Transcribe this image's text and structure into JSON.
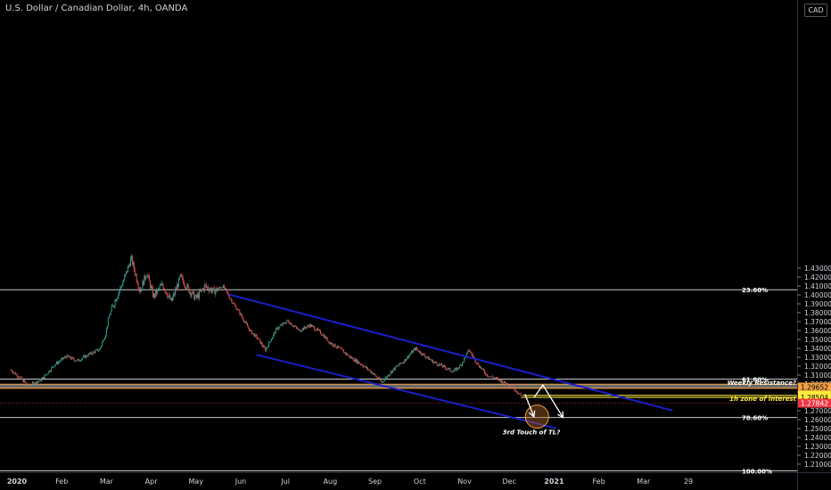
{
  "header": {
    "title": "U.S. Dollar / Canadian Dollar, 4h, OANDA",
    "currency": "CAD"
  },
  "chart_data": {
    "type": "candlestick",
    "symbol": "USDCAD",
    "timeframe": "4h",
    "broker": "OANDA",
    "ylim": [
      1.2025,
      1.44
    ],
    "y_ticks": [
      1.43,
      1.42,
      1.41,
      1.4,
      1.39,
      1.38,
      1.37,
      1.36,
      1.35,
      1.34,
      1.33,
      1.32,
      1.31,
      1.3,
      1.27,
      1.26,
      1.25,
      1.24,
      1.23,
      1.22,
      1.21
    ],
    "x_ticks": [
      {
        "label": "2020",
        "t": 0
      },
      {
        "label": "Feb",
        "t": 1
      },
      {
        "label": "Mar",
        "t": 2
      },
      {
        "label": "Apr",
        "t": 3
      },
      {
        "label": "May",
        "t": 4
      },
      {
        "label": "Jun",
        "t": 5
      },
      {
        "label": "Jul",
        "t": 6
      },
      {
        "label": "Aug",
        "t": 7
      },
      {
        "label": "Sep",
        "t": 8
      },
      {
        "label": "Oct",
        "t": 9
      },
      {
        "label": "Nov",
        "t": 10
      },
      {
        "label": "Dec",
        "t": 11
      },
      {
        "label": "2021",
        "t": 12
      },
      {
        "label": "Feb",
        "t": 13
      },
      {
        "label": "Mar",
        "t": 14
      },
      {
        "label": "29",
        "t": 15
      }
    ],
    "price_path": [
      [
        -0.15,
        1.316
      ],
      [
        0.05,
        1.308
      ],
      [
        0.25,
        1.298
      ],
      [
        0.55,
        1.305
      ],
      [
        0.85,
        1.322
      ],
      [
        1.1,
        1.331
      ],
      [
        1.35,
        1.326
      ],
      [
        1.6,
        1.333
      ],
      [
        1.85,
        1.339
      ],
      [
        1.98,
        1.356
      ],
      [
        2.05,
        1.375
      ],
      [
        2.2,
        1.395
      ],
      [
        2.4,
        1.418
      ],
      [
        2.55,
        1.441
      ],
      [
        2.75,
        1.405
      ],
      [
        2.9,
        1.425
      ],
      [
        3.05,
        1.398
      ],
      [
        3.25,
        1.412
      ],
      [
        3.45,
        1.392
      ],
      [
        3.65,
        1.42
      ],
      [
        3.85,
        1.405
      ],
      [
        4.0,
        1.396
      ],
      [
        4.2,
        1.41
      ],
      [
        4.4,
        1.404
      ],
      [
        4.6,
        1.41
      ],
      [
        4.8,
        1.393
      ],
      [
        5.0,
        1.378
      ],
      [
        5.2,
        1.36
      ],
      [
        5.4,
        1.35
      ],
      [
        5.55,
        1.338
      ],
      [
        5.8,
        1.362
      ],
      [
        6.05,
        1.371
      ],
      [
        6.3,
        1.36
      ],
      [
        6.55,
        1.366
      ],
      [
        6.8,
        1.357
      ],
      [
        7.0,
        1.346
      ],
      [
        7.2,
        1.34
      ],
      [
        7.45,
        1.33
      ],
      [
        7.7,
        1.322
      ],
      [
        7.95,
        1.312
      ],
      [
        8.15,
        1.302
      ],
      [
        8.4,
        1.316
      ],
      [
        8.65,
        1.326
      ],
      [
        8.9,
        1.34
      ],
      [
        9.1,
        1.332
      ],
      [
        9.3,
        1.325
      ],
      [
        9.5,
        1.32
      ],
      [
        9.75,
        1.314
      ],
      [
        9.9,
        1.32
      ],
      [
        10.1,
        1.338
      ],
      [
        10.3,
        1.322
      ],
      [
        10.5,
        1.31
      ],
      [
        10.75,
        1.305
      ],
      [
        11.0,
        1.299
      ],
      [
        11.15,
        1.293
      ],
      [
        11.3,
        1.284
      ]
    ],
    "current_price": 1.27842,
    "horizontal_lines": [
      {
        "label": "23.60%",
        "price": 1.4058
      },
      {
        "label": "61.80%",
        "price": 1.3055
      },
      {
        "label": "78.60%",
        "price": 1.2624
      },
      {
        "label": "100.00%",
        "price": 1.2025
      }
    ],
    "zones": [
      {
        "label": "Weekly Resistance?",
        "low": 1.2952,
        "high": 1.2997,
        "color": "#f0a040",
        "price_label": "1.29652"
      },
      {
        "label": "1h zone of interest",
        "low": 1.285,
        "high": 1.2872,
        "color": "#ffeb3b",
        "price_labels": [
          "1.28719",
          "1.28504"
        ]
      }
    ],
    "channel": {
      "upper": [
        [
          4.75,
          1.4003
        ],
        [
          14.65,
          1.2702
        ]
      ],
      "lower": [
        [
          5.35,
          1.3328
        ],
        [
          12.05,
          1.2503
        ]
      ],
      "color": "#1a1fc8"
    },
    "arrows": [
      [
        [
          11.35,
          1.2886
        ],
        [
          11.55,
          1.2633
        ]
      ],
      [
        [
          11.55,
          1.2846
        ],
        [
          11.75,
          1.2988
        ],
        [
          12.2,
          1.2624
        ]
      ]
    ],
    "circle": {
      "t": 11.62,
      "price": 1.2634,
      "color": "#f0a040"
    },
    "annotations": [
      {
        "text": "3rd Touch of TL?",
        "t": 10.85,
        "price": 1.2505
      }
    ]
  }
}
